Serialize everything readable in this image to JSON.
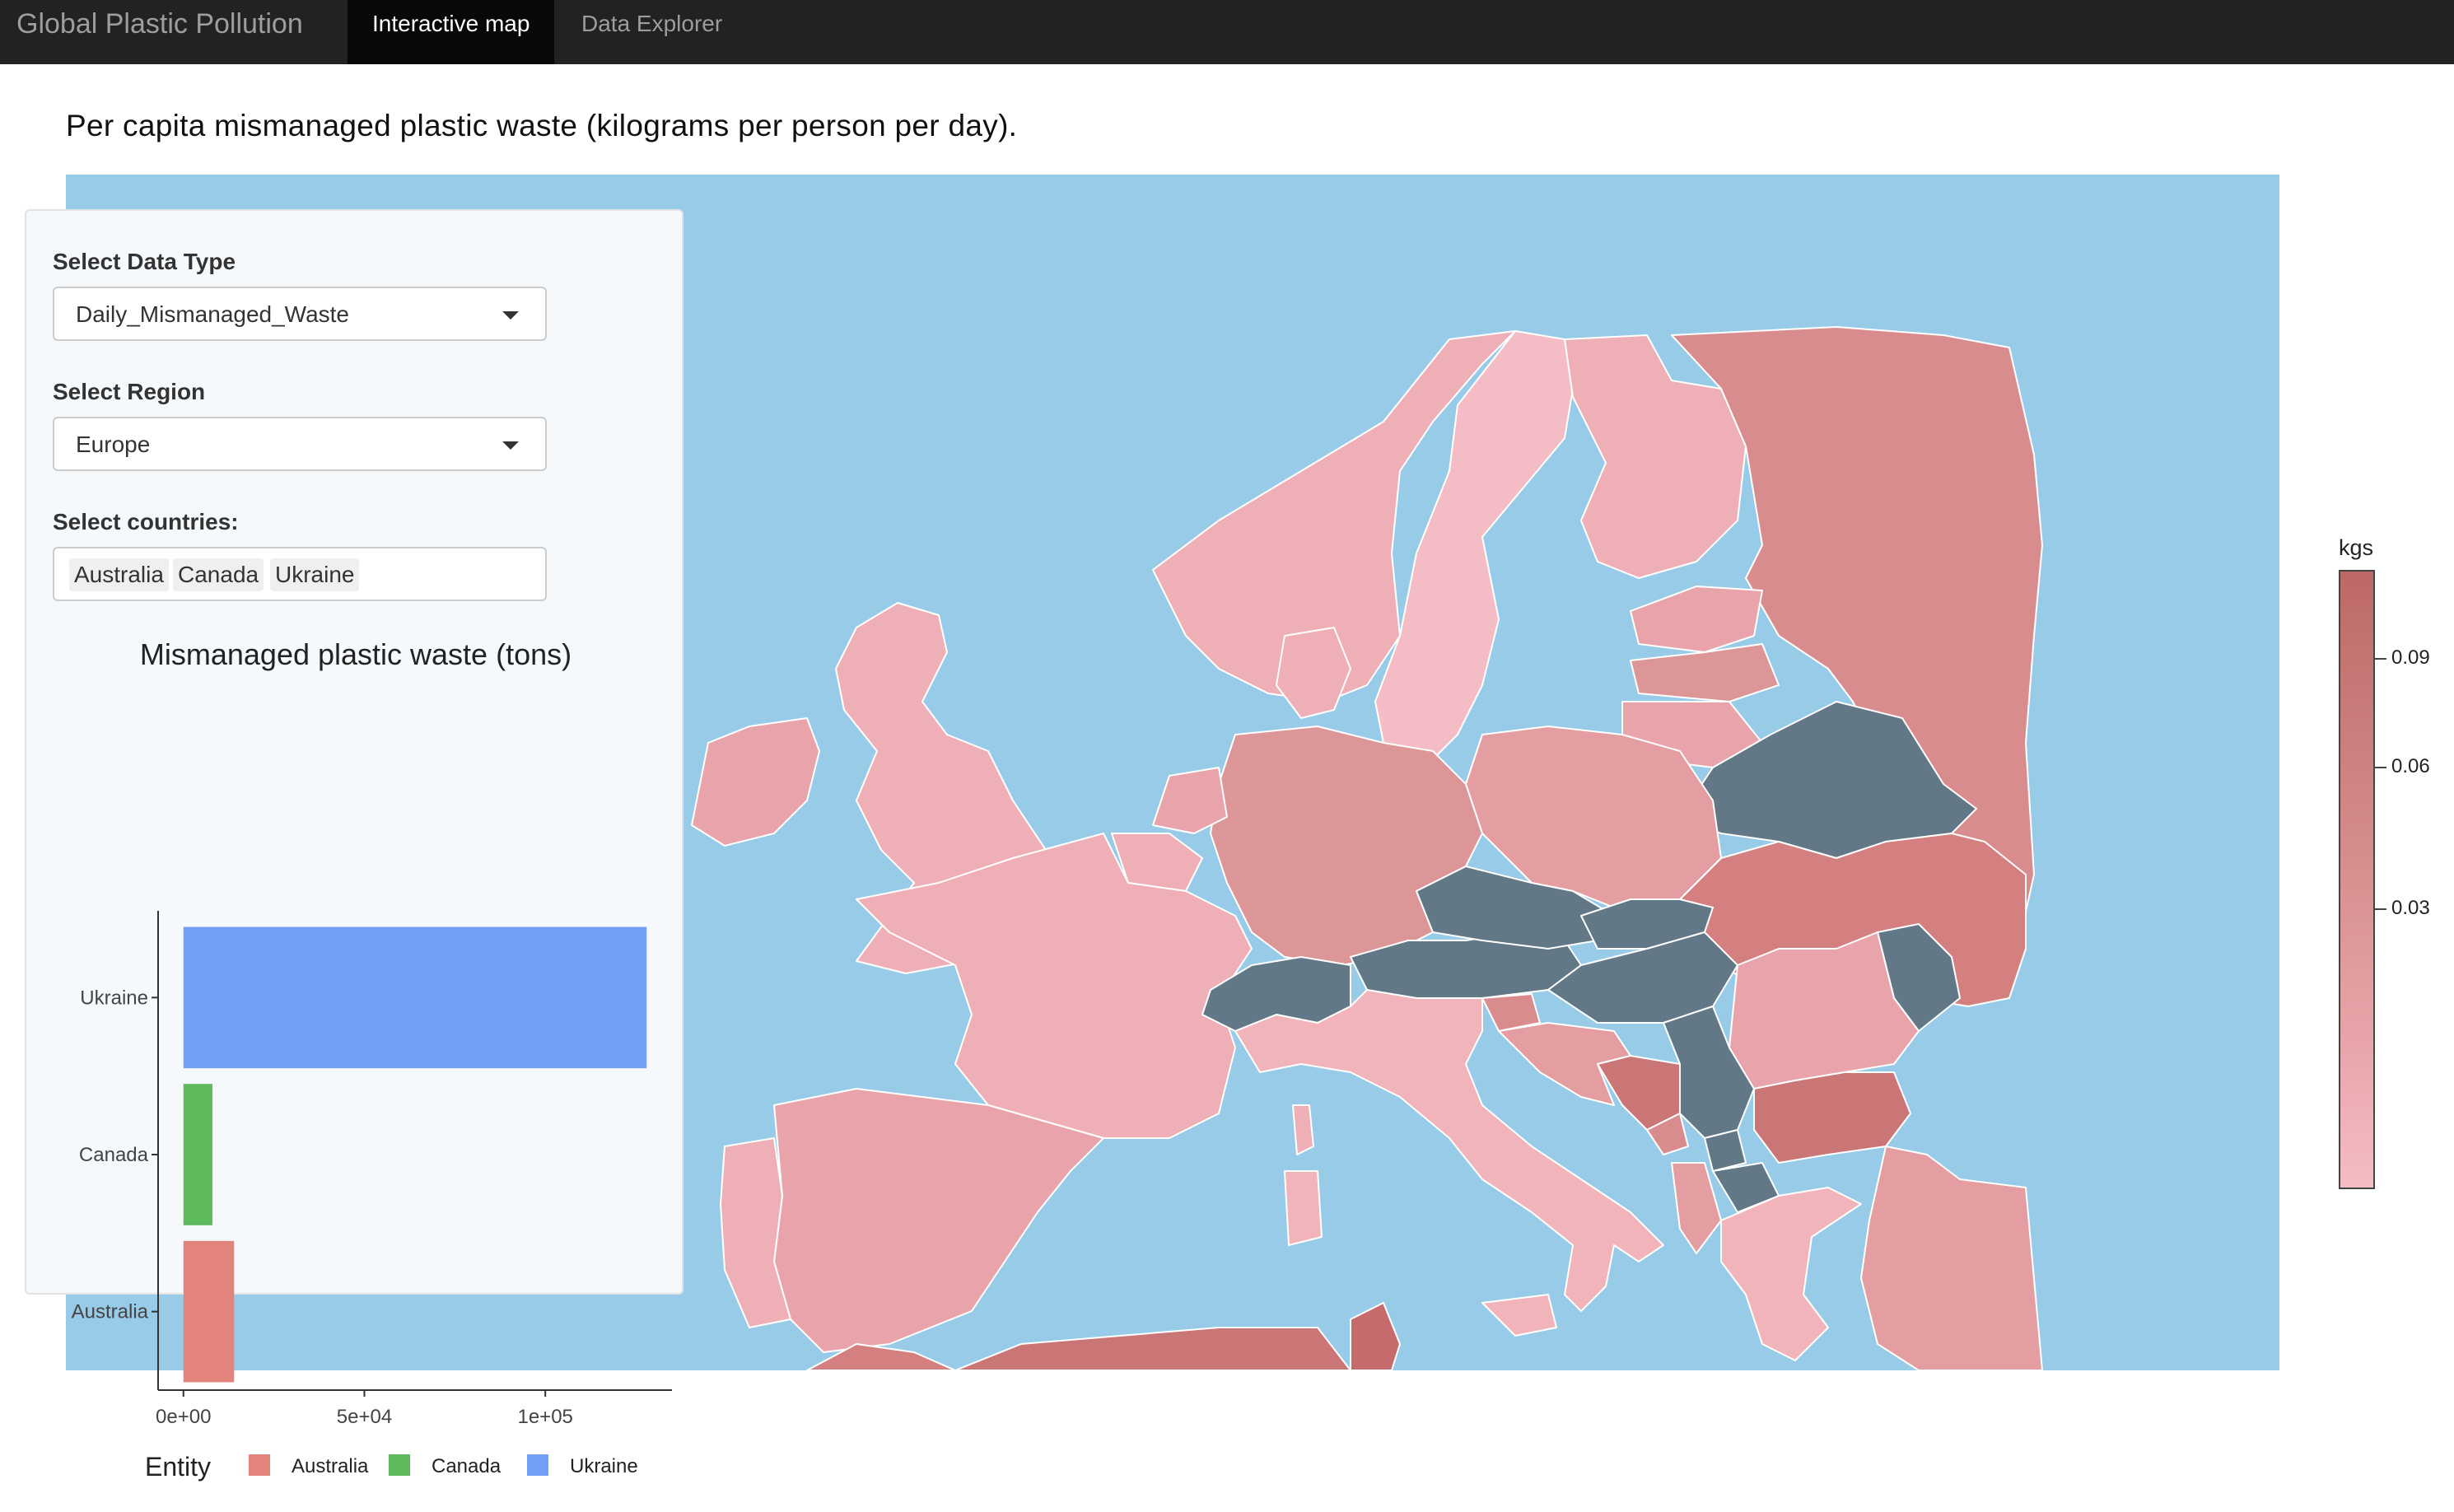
{
  "navbar": {
    "brand": "Global Plastic Pollution",
    "tabs": [
      {
        "label": "Interactive map",
        "active": true
      },
      {
        "label": "Data Explorer",
        "active": false
      }
    ]
  },
  "page": {
    "title": "Per capita mismanaged plastic waste (kilograms per person per day)."
  },
  "map": {
    "region": "Europe",
    "ocean_color": "#98cbe7",
    "highlight_color": "#637887",
    "colorbar": {
      "title": "kgs",
      "ticks": [
        "0.09",
        "0.06",
        "0.03"
      ],
      "min_color": "#f4bcc4",
      "max_color": "#bd6868"
    }
  },
  "controls": {
    "data_type_label": "Select Data Type",
    "data_type_value": "Daily_Mismanaged_Waste",
    "region_label": "Select Region",
    "region_value": "Europe",
    "countries_label": "Select countries:",
    "countries_selected": [
      "Australia",
      "Canada",
      "Ukraine"
    ]
  },
  "chart_data": {
    "type": "bar",
    "orientation": "horizontal",
    "title": "Mismanaged plastic waste (tons)",
    "categories": [
      "Ukraine",
      "Canada",
      "Australia"
    ],
    "values": [
      128000,
      8000,
      14000
    ],
    "colors": [
      "#729ef5",
      "#5cba5c",
      "#e2847c"
    ],
    "xlim": [
      -7000,
      135000
    ],
    "x_ticks": [
      0,
      50000,
      100000
    ],
    "x_tick_labels": [
      "0e+00",
      "5e+04",
      "1e+05"
    ],
    "legend_title": "Entity",
    "legend": [
      {
        "name": "Australia",
        "color": "#e2847c"
      },
      {
        "name": "Canada",
        "color": "#5cba5c"
      },
      {
        "name": "Ukraine",
        "color": "#729ef5"
      }
    ],
    "legend_position": "bottom"
  }
}
